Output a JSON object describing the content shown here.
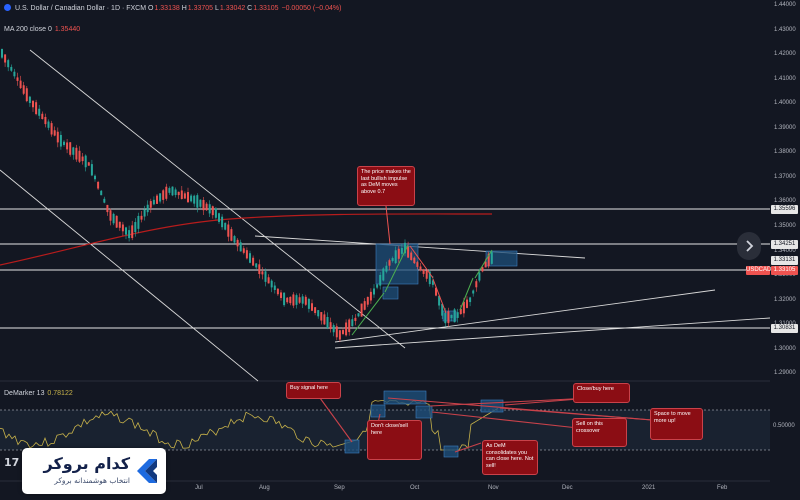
{
  "header": {
    "symbol_title": "U.S. Dollar / Canadian Dollar · 1D · FXCM",
    "ohlc": [
      {
        "k": "O",
        "v": "1.33138"
      },
      {
        "k": "H",
        "v": "1.33705"
      },
      {
        "k": "L",
        "v": "1.33042"
      },
      {
        "k": "C",
        "v": "1.33105"
      },
      {
        "k": "",
        "v": "−0.00050 (−0.04%)"
      }
    ],
    "ma_label": "MA 200 close 0",
    "ma_value": "1.35440"
  },
  "indicator": {
    "label": "DeMarker 13",
    "value": "0.78122"
  },
  "price_axis": {
    "ticks": [
      "1.44000",
      "1.43000",
      "1.42000",
      "1.41000",
      "1.40000",
      "1.39000",
      "1.38000",
      "1.37000",
      "1.36000",
      "1.35000",
      "1.34000",
      "1.33000",
      "1.32000",
      "1.31000",
      "1.30000",
      "1.29000"
    ],
    "indicator_tick": "0.50000",
    "labels": [
      {
        "text": "1.35596",
        "style": "white"
      },
      {
        "text": "1.34251",
        "style": "white"
      },
      {
        "text": "1.33131",
        "style": "white"
      },
      {
        "text": "USDCAD",
        "style": "red-tag"
      },
      {
        "text": "1.33105",
        "style": "red"
      },
      {
        "text": "1.30831",
        "style": "white"
      }
    ]
  },
  "time_axis": [
    "Jul",
    "Aug",
    "Sep",
    "Oct",
    "Nov",
    "Dec",
    "2021",
    "Feb"
  ],
  "callouts": {
    "price_makes": "The price makes the last bullish impulse as DeM moves above 0.7",
    "buy_signal": "Buy signal here",
    "dont_close": "Don't close/sell here",
    "close_buy": "Close/buy here",
    "sell_crossover": "Sell on this crossover",
    "space_move": "Space to move more up!",
    "dem_consolidates": "As DeM consolidates you can close here. Not sell!"
  },
  "brand": {
    "title": "کدام بروکر",
    "subtitle": "انتخاب هوشمندانه بروکر"
  },
  "colors": {
    "background": "#131722",
    "bull": "#26a69a",
    "bear": "#ef5350",
    "ma": "#b71c1c",
    "callout": "#8b0d14",
    "highlight_box": "#1e4f7a",
    "demarker": "#c7b24a"
  },
  "icons": [
    "tradingview-logo-icon",
    "chevron-right-icon",
    "broker-logo-icon"
  ]
}
